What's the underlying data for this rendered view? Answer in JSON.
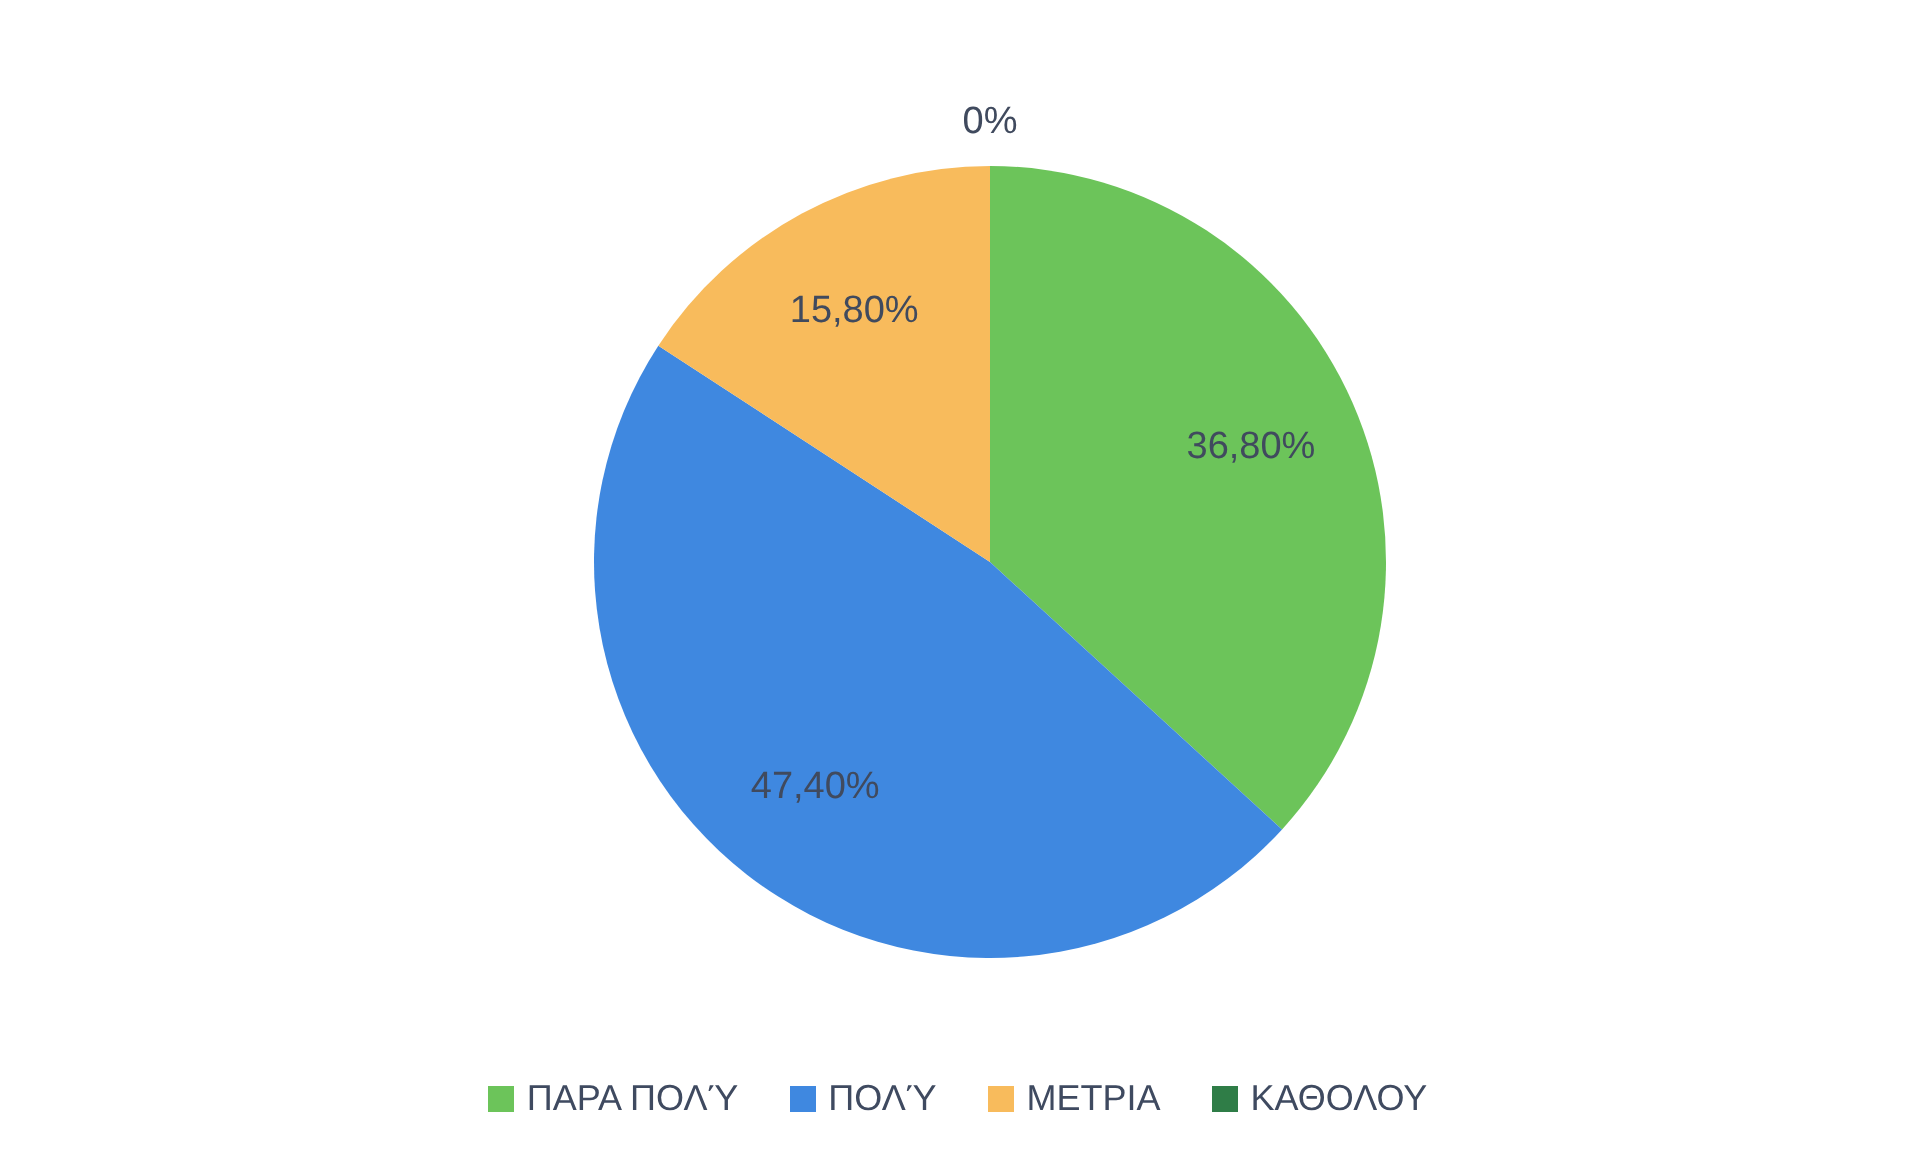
{
  "chart_data": {
    "type": "pie",
    "categories": [
      "ΠΑΡΑ ΠΟΛΎ",
      "ΠΟΛΎ",
      "ΜΕΤΡΙΑ",
      "ΚΑΘΟΛΟΥ"
    ],
    "values": [
      36.8,
      47.4,
      15.8,
      0
    ],
    "value_labels": [
      "36,80%",
      "47,40%",
      "15,80%",
      "0%"
    ],
    "colors": [
      "#6cc45a",
      "#3f88e0",
      "#f8bb5c",
      "#2f7d47"
    ],
    "legend": "bottom"
  }
}
